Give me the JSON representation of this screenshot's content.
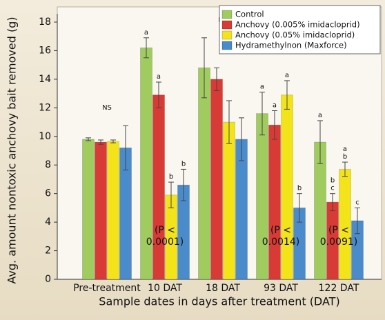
{
  "chart_data": {
    "type": "bar",
    "y_label": "Avg. amount nontoxic anchovy bait removed (g)",
    "x_label": "Sample dates in days after treatment (DAT)",
    "categories": [
      "Pre-treatment",
      "10 DAT",
      "18 DAT",
      "93 DAT",
      "122 DAT"
    ],
    "series": [
      {
        "name": "Control",
        "color": "#9fcb5f",
        "values": [
          9.8,
          16.2,
          14.8,
          11.6,
          9.6
        ],
        "errors": [
          0.1,
          0.7,
          2.1,
          1.5,
          1.5
        ],
        "letters": [
          null,
          [
            "a"
          ],
          null,
          [
            "a"
          ],
          [
            "a"
          ]
        ]
      },
      {
        "name": "Anchovy (0.005% imidacloprid)",
        "color": "#d83a36",
        "values": [
          9.6,
          12.9,
          14.0,
          10.8,
          5.4
        ],
        "errors": [
          0.15,
          0.9,
          0.8,
          1.0,
          0.6
        ],
        "letters": [
          null,
          [
            "a"
          ],
          null,
          [
            "a"
          ],
          [
            "b",
            "c"
          ]
        ]
      },
      {
        "name": "Anchovy (0.05% imidacloprid)",
        "color": "#f3e41a",
        "values": [
          9.65,
          5.9,
          11.0,
          12.9,
          7.7
        ],
        "errors": [
          0.1,
          0.9,
          1.5,
          1.0,
          0.5
        ],
        "letters": [
          null,
          [
            "b"
          ],
          null,
          [
            "a"
          ],
          [
            "a",
            "b"
          ]
        ]
      },
      {
        "name": "Hydramethylnon (Maxforce)",
        "color": "#4a8bcb",
        "values": [
          9.2,
          6.6,
          9.8,
          5.0,
          4.1
        ],
        "errors": [
          1.55,
          1.1,
          1.5,
          1.0,
          0.9
        ],
        "letters": [
          null,
          [
            "b"
          ],
          null,
          [
            "b"
          ],
          [
            "c"
          ]
        ]
      }
    ],
    "ns_labels": [
      "NS",
      null,
      "NS",
      null,
      null
    ],
    "p_values": [
      null,
      [
        "(P <",
        "0.0001)"
      ],
      null,
      [
        "(P <",
        "0.0014)"
      ],
      [
        "(P <",
        "0.0091)"
      ]
    ],
    "ylim": [
      0,
      18
    ],
    "yticks": [
      0,
      2,
      4,
      6,
      8,
      10,
      12,
      14,
      16,
      18
    ],
    "legend": "top-right"
  }
}
